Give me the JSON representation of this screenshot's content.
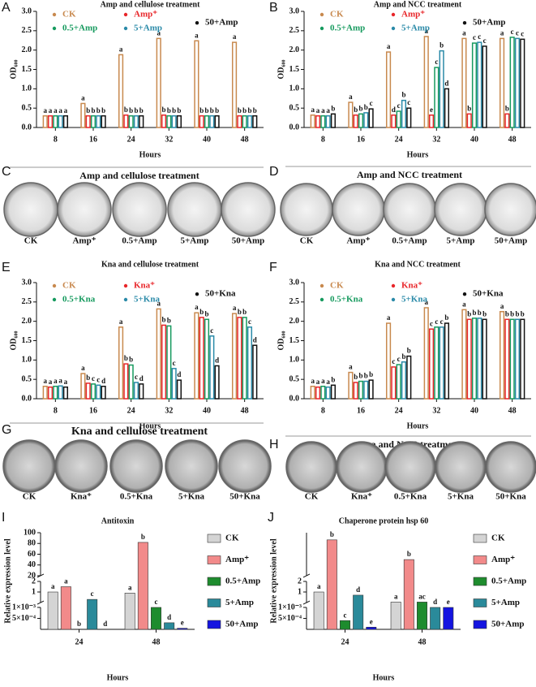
{
  "chart_data": [
    {
      "type": "bar",
      "label": "A",
      "title": "Amp and cellulose treatment",
      "x_label": "Hours",
      "y_label": "OD₆₀₀",
      "categories": [
        "8",
        "16",
        "24",
        "32",
        "40",
        "48"
      ],
      "ylim": [
        0,
        3
      ],
      "yticks": [
        {
          "value": 0,
          "label": "0.0"
        },
        0.5,
        {
          "value": 1,
          "label": "1.0"
        },
        1.5,
        {
          "value": 2,
          "label": "2.0"
        },
        2.5,
        {
          "value": 3,
          "label": "3.0"
        }
      ],
      "series": [
        {
          "name": "CK",
          "color": "#c8894e",
          "values": [
            0.3,
            0.62,
            1.88,
            2.3,
            2.24,
            2.2
          ],
          "letters": [
            "a",
            "a",
            "a",
            "a",
            "a",
            "a"
          ]
        },
        {
          "name": "Amp⁺",
          "color": "#e8262a",
          "values": [
            0.3,
            0.3,
            0.32,
            0.32,
            0.3,
            0.3
          ],
          "letters": [
            "a",
            "b",
            "b",
            "b",
            "b",
            "b"
          ]
        },
        {
          "name": "0.5+Amp",
          "color": "#169a5e",
          "values": [
            0.3,
            0.3,
            0.3,
            0.3,
            0.3,
            0.3
          ],
          "letters": [
            "a",
            "b",
            "b",
            "b",
            "b",
            "b"
          ]
        },
        {
          "name": "5+Amp",
          "color": "#2a8aa8",
          "values": [
            0.3,
            0.3,
            0.3,
            0.3,
            0.3,
            0.3
          ],
          "letters": [
            "a",
            "b",
            "b",
            "b",
            "b",
            "b"
          ]
        },
        {
          "name": "50+Amp",
          "color": "#111111",
          "values": [
            0.3,
            0.3,
            0.3,
            0.3,
            0.3,
            0.3
          ],
          "letters": [
            "a",
            "b",
            "b",
            "b",
            "b",
            "b"
          ]
        }
      ]
    },
    {
      "type": "bar",
      "label": "B",
      "title": "Amp and NCC treatment",
      "x_label": "Hours",
      "y_label": "OD₆₀₀",
      "categories": [
        "8",
        "16",
        "24",
        "32",
        "40",
        "48"
      ],
      "ylim": [
        0,
        3
      ],
      "yticks": [
        {
          "value": 0,
          "label": "0.0"
        },
        0.5,
        {
          "value": 1,
          "label": "1.0"
        },
        1.5,
        {
          "value": 2,
          "label": "2.0"
        },
        2.5,
        {
          "value": 3,
          "label": "3.0"
        }
      ],
      "series": [
        {
          "name": "CK",
          "color": "#c8894e",
          "values": [
            0.32,
            0.65,
            1.95,
            2.35,
            2.3,
            2.3
          ],
          "letters": [
            "a",
            "a",
            "a",
            "a",
            "a",
            "a"
          ]
        },
        {
          "name": "Amp⁺",
          "color": "#e8262a",
          "values": [
            0.3,
            0.32,
            0.32,
            0.32,
            0.35,
            0.35
          ],
          "letters": [
            "a",
            "b",
            "d",
            "e",
            "b",
            "b"
          ]
        },
        {
          "name": "0.5+Amp",
          "color": "#169a5e",
          "values": [
            0.3,
            0.35,
            0.42,
            1.55,
            2.18,
            2.33
          ],
          "letters": [
            "a",
            "b",
            "c",
            "c",
            "c",
            "c"
          ]
        },
        {
          "name": "5+Amp",
          "color": "#2a8aa8",
          "values": [
            0.3,
            0.38,
            0.7,
            1.98,
            2.2,
            2.3
          ],
          "letters": [
            "a",
            "b",
            "b",
            "b",
            "c",
            "c"
          ]
        },
        {
          "name": "50+Amp",
          "color": "#111111",
          "values": [
            0.35,
            0.48,
            0.5,
            1.0,
            2.1,
            2.28
          ],
          "letters": [
            "b",
            "c",
            "c",
            "d",
            "c",
            "c"
          ]
        }
      ]
    },
    {
      "type": "bar",
      "label": "E",
      "title": "Kna and cellulose treatment",
      "x_label": "Hours",
      "y_label": "OD₆₀₀",
      "categories": [
        "8",
        "16",
        "24",
        "32",
        "40",
        "48"
      ],
      "ylim": [
        0,
        3
      ],
      "yticks": [
        {
          "value": 0,
          "label": "0.0"
        },
        0.5,
        {
          "value": 1,
          "label": "1.0"
        },
        1.5,
        {
          "value": 2,
          "label": "2.0"
        },
        2.5,
        {
          "value": 3,
          "label": "3.0"
        }
      ],
      "series": [
        {
          "name": "CK",
          "color": "#c8894e",
          "values": [
            0.32,
            0.65,
            1.85,
            2.32,
            2.22,
            2.2
          ],
          "letters": [
            "a",
            "a",
            "a",
            "a",
            "a",
            "a"
          ]
        },
        {
          "name": "Kna⁺",
          "color": "#e8262a",
          "values": [
            0.3,
            0.4,
            0.9,
            1.9,
            2.1,
            2.1
          ],
          "letters": [
            "a",
            "b",
            "b",
            "b",
            "b",
            "b"
          ]
        },
        {
          "name": "0.5+Kna",
          "color": "#169a5e",
          "values": [
            0.32,
            0.38,
            0.87,
            1.88,
            2.05,
            2.1
          ],
          "letters": [
            "a",
            "c",
            "b",
            "b",
            "b",
            "b"
          ]
        },
        {
          "name": "5+Kna",
          "color": "#2a8aa8",
          "values": [
            0.33,
            0.35,
            0.42,
            0.78,
            1.62,
            1.85
          ],
          "letters": [
            "a",
            "c",
            "c",
            "c",
            "c",
            "c"
          ]
        },
        {
          "name": "50+Kna",
          "color": "#111111",
          "values": [
            0.3,
            0.32,
            0.38,
            0.48,
            0.85,
            1.38
          ],
          "letters": [
            "a",
            "d",
            "d",
            "d",
            "d",
            "d"
          ]
        }
      ]
    },
    {
      "type": "bar",
      "label": "F",
      "title": "Kna and NCC treatment",
      "x_label": "Hours",
      "y_label": "OD₆₀₀",
      "categories": [
        "8",
        "16",
        "24",
        "32",
        "40",
        "48"
      ],
      "ylim": [
        0,
        3
      ],
      "yticks": [
        {
          "value": 0,
          "label": "0.0"
        },
        0.5,
        {
          "value": 1,
          "label": "1.0"
        },
        1.5,
        {
          "value": 2,
          "label": "2.0"
        },
        2.5,
        {
          "value": 3,
          "label": "3.0"
        }
      ],
      "series": [
        {
          "name": "CK",
          "color": "#c8894e",
          "values": [
            0.32,
            0.68,
            1.95,
            2.35,
            2.3,
            2.25
          ],
          "letters": [
            "a",
            "a",
            "a",
            "a",
            "a",
            "a"
          ]
        },
        {
          "name": "Kna⁺",
          "color": "#e8262a",
          "values": [
            0.3,
            0.42,
            0.82,
            1.8,
            2.05,
            2.05
          ],
          "letters": [
            "a",
            "b",
            "c",
            "c",
            "b",
            "b"
          ]
        },
        {
          "name": "0.5+Kna",
          "color": "#169a5e",
          "values": [
            0.32,
            0.45,
            0.88,
            1.85,
            2.08,
            2.05
          ],
          "letters": [
            "a",
            "b",
            "c",
            "c",
            "b",
            "b"
          ]
        },
        {
          "name": "5+Kna",
          "color": "#2a8aa8",
          "values": [
            0.3,
            0.45,
            0.95,
            1.85,
            2.08,
            2.05
          ],
          "letters": [
            "a",
            "b",
            "b",
            "c",
            "b",
            "b"
          ]
        },
        {
          "name": "50+Kna",
          "color": "#111111",
          "values": [
            0.35,
            0.48,
            1.1,
            1.95,
            2.05,
            2.05
          ],
          "letters": [
            "b",
            "b",
            "b",
            "b",
            "b",
            "b"
          ]
        }
      ]
    },
    {
      "type": "bar",
      "label": "I",
      "title": "Antitoxin",
      "x_label": "Hours",
      "y_label": "Relative expression level",
      "categories": [
        "24",
        "48"
      ],
      "y_segments": [
        {
          "ylim": [
            0,
            0.001
          ],
          "yticks": [
            {
              "value": 0.0005,
              "label": "5×10⁻⁴"
            },
            {
              "value": 0.001,
              "label": "1×10⁻³"
            }
          ]
        },
        {
          "ylim": [
            0.001,
            2
          ],
          "yticks": [
            1,
            2
          ]
        },
        {
          "ylim": [
            20,
            100
          ],
          "yticks": [
            20,
            40,
            60,
            80,
            100
          ]
        }
      ],
      "series": [
        {
          "name": "CK",
          "color": "#d4d4d4",
          "values": [
            1.0,
            0.9
          ],
          "letters": [
            "a",
            "a"
          ]
        },
        {
          "name": "Amp⁺",
          "color": "#f28a8a",
          "values": [
            1.5,
            82
          ],
          "letters": [
            "a",
            "b"
          ]
        },
        {
          "name": "0.5+Amp",
          "color": "#1e8c2e",
          "values": [
            0,
            0.001
          ],
          "letters": [
            "b",
            "c"
          ]
        },
        {
          "name": "5+Amp",
          "color": "#2a8a9a",
          "values": [
            0.3,
            0.0003
          ],
          "letters": [
            "c",
            "d"
          ]
        },
        {
          "name": "50+Amp",
          "color": "#1414e0",
          "values": [
            0,
            5e-05
          ],
          "letters": [
            "d",
            "e"
          ]
        }
      ]
    },
    {
      "type": "bar",
      "label": "J",
      "title": "Chaperone protein hsp 60",
      "x_label": "Hours",
      "y_label": "Relative expression level",
      "categories": [
        "24",
        "48"
      ],
      "y_segments": [
        {
          "ylim": [
            0,
            0.001
          ],
          "yticks": [
            {
              "value": 0.0005,
              "label": "5×10⁻⁴"
            },
            {
              "value": 0.001,
              "label": "1×10⁻³"
            }
          ]
        },
        {
          "ylim": [
            0.001,
            2
          ],
          "yticks": [
            1,
            2
          ]
        },
        {
          "ylim": [
            2,
            50
          ]
        }
      ],
      "series": [
        {
          "name": "CK",
          "color": "#d4d4d4",
          "values": [
            1.0,
            0.05
          ],
          "letters": [
            "a",
            "a"
          ]
        },
        {
          "name": "Amp⁺",
          "color": "#f28a8a",
          "values": [
            42,
            20
          ],
          "letters": [
            "b",
            "b"
          ]
        },
        {
          "name": "0.5+Amp",
          "color": "#1e8c2e",
          "values": [
            0.0004,
            0.05
          ],
          "letters": [
            "c",
            "ac"
          ]
        },
        {
          "name": "5+Amp",
          "color": "#2a8a9a",
          "values": [
            0.7,
            0.001
          ],
          "letters": [
            "d",
            "d"
          ]
        },
        {
          "name": "50+Amp",
          "color": "#1414e0",
          "values": [
            0.0001,
            0.001
          ],
          "letters": [
            "e",
            "e"
          ]
        }
      ]
    }
  ],
  "plate_panels": [
    {
      "label": "C",
      "title": "Amp and cellulose treatment",
      "plates": [
        "CK",
        "Amp⁺",
        "0.5+Amp",
        "5+Amp",
        "50+Amp"
      ]
    },
    {
      "label": "D",
      "title": "Amp and NCC treatment",
      "plates": [
        "CK",
        "Amp⁺",
        "0.5+Amp",
        "5+Amp",
        "50+Amp"
      ]
    },
    {
      "label": "G",
      "title": "Kna and cellulose  treatment",
      "plates": [
        "CK",
        "Kna⁺",
        "0.5+Kna",
        "5+Kna",
        "50+Kna"
      ]
    },
    {
      "label": "H",
      "title": "Kna and NCC treatment",
      "plates": [
        "CK",
        "Kna⁺",
        "0.5+Kna",
        "5+Kna",
        "50+Kna"
      ]
    }
  ]
}
